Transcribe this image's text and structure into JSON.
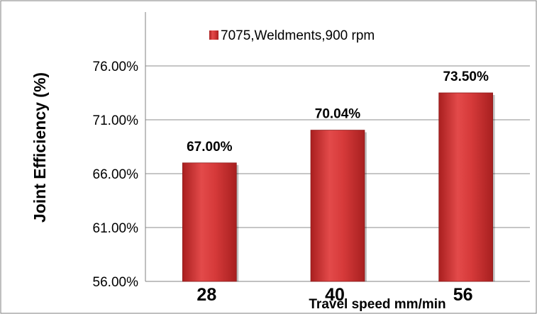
{
  "chart_data": {
    "type": "bar",
    "categories": [
      "28",
      "40",
      "56"
    ],
    "series": [
      {
        "name": "7075,Weldments,900 rpm",
        "values": [
          67.0,
          70.04,
          73.5
        ],
        "color": "#d63a3a"
      }
    ],
    "data_labels": [
      "67.00%",
      "70.04%",
      "73.50%"
    ],
    "yticks": [
      "56.00%",
      "61.00%",
      "66.00%",
      "71.00%",
      "76.00%"
    ],
    "ytick_values": [
      56,
      61,
      66,
      71,
      76
    ],
    "ylim": [
      56,
      81
    ],
    "xlabel": "Travel speed mm/min",
    "ylabel": "Joint  Efficiency (%)",
    "grid": true,
    "legend_position": "top"
  }
}
